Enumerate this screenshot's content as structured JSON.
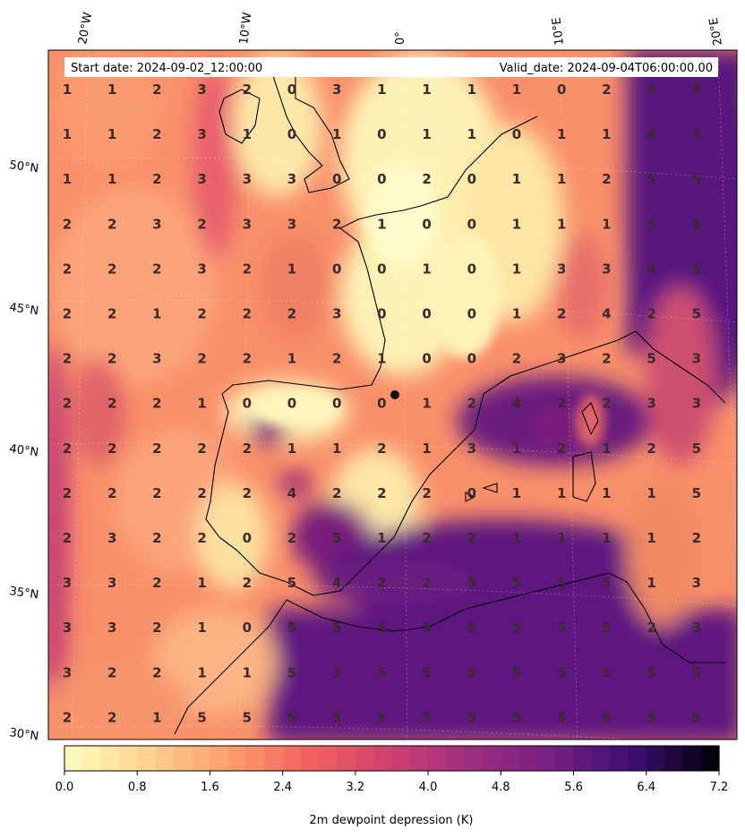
{
  "header": {
    "start_date": "Start date: 2024-09-02_12:00:00",
    "valid_date": "Valid_date: 2024-09-04T06:00:00.00"
  },
  "graticule": {
    "longitude_labels": [
      "20°W",
      "10°W",
      "0°",
      "10°E",
      "20°E"
    ],
    "latitude_labels": [
      "50°N",
      "45°N",
      "40°N",
      "35°N",
      "30°N"
    ]
  },
  "colorbar": {
    "label": "2m dewpoint depression (K)",
    "tick_labels": [
      "0.0",
      "0.8",
      "1.6",
      "2.4",
      "3.2",
      "4.0",
      "4.8",
      "5.6",
      "6.4",
      "7.2"
    ],
    "range": [
      0,
      7.2
    ],
    "levels": 36,
    "colormap": "magma_r",
    "colors": {
      "low": "#fcfdbf",
      "mid_low": "#fc8961",
      "mid": "#b73779",
      "high": "#51127c",
      "max": "#000004"
    }
  },
  "grid_values": [
    [
      1,
      1,
      2,
      3,
      2,
      0,
      3,
      1,
      1,
      1,
      1,
      0,
      2,
      5,
      5
    ],
    [
      1,
      1,
      2,
      3,
      1,
      0,
      1,
      0,
      1,
      1,
      0,
      1,
      1,
      4,
      5
    ],
    [
      1,
      1,
      2,
      3,
      3,
      3,
      0,
      0,
      2,
      0,
      1,
      1,
      2,
      5,
      5
    ],
    [
      2,
      2,
      3,
      2,
      3,
      3,
      2,
      1,
      0,
      0,
      1,
      1,
      1,
      5,
      5
    ],
    [
      2,
      2,
      2,
      3,
      2,
      1,
      0,
      0,
      1,
      0,
      1,
      3,
      3,
      4,
      5
    ],
    [
      2,
      2,
      1,
      2,
      2,
      2,
      3,
      0,
      0,
      0,
      1,
      2,
      4,
      2,
      5
    ],
    [
      2,
      2,
      3,
      2,
      2,
      1,
      2,
      1,
      0,
      0,
      2,
      3,
      2,
      5,
      3
    ],
    [
      2,
      2,
      2,
      1,
      0,
      0,
      0,
      0,
      1,
      2,
      4,
      2,
      2,
      3,
      3
    ],
    [
      2,
      2,
      2,
      2,
      2,
      1,
      1,
      2,
      1,
      3,
      1,
      2,
      1,
      2,
      5
    ],
    [
      2,
      2,
      2,
      2,
      2,
      4,
      2,
      2,
      2,
      0,
      1,
      1,
      1,
      1,
      5
    ],
    [
      2,
      3,
      2,
      2,
      0,
      2,
      5,
      1,
      2,
      2,
      1,
      1,
      1,
      1,
      2
    ],
    [
      3,
      3,
      2,
      1,
      2,
      5,
      4,
      2,
      2,
      5,
      5,
      5,
      5,
      1,
      3
    ],
    [
      3,
      3,
      2,
      1,
      0,
      5,
      5,
      5,
      5,
      5,
      5,
      5,
      5,
      2,
      3
    ],
    [
      3,
      2,
      2,
      1,
      1,
      5,
      5,
      5,
      5,
      5,
      5,
      5,
      5,
      5,
      5
    ],
    [
      2,
      2,
      1,
      5,
      5,
      5,
      5,
      5,
      5,
      5,
      5,
      5,
      5,
      5,
      5
    ]
  ]
}
